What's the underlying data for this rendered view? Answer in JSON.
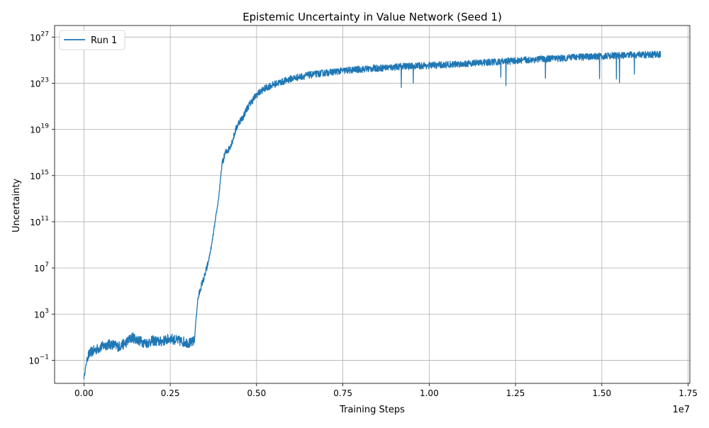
{
  "chart_data": {
    "type": "line",
    "title": "Epistemic Uncertainty in Value Network (Seed 1)",
    "xlabel": "Training Steps",
    "ylabel": "Uncertainty",
    "x_offset_label": "1e7",
    "x_scale": "linear",
    "y_scale": "log",
    "xlim": [
      -850000,
      17550000
    ],
    "ylim": [
      0.001,
      1e+28
    ],
    "x_ticks": [
      0,
      2500000,
      5000000,
      7500000,
      10000000,
      12500000,
      15000000,
      17500000
    ],
    "x_tick_labels": [
      "0.00",
      "0.25",
      "0.50",
      "0.75",
      "1.00",
      "1.25",
      "1.50",
      "1.75"
    ],
    "y_tick_exponents": [
      -1,
      3,
      7,
      11,
      15,
      19,
      23,
      27
    ],
    "grid": true,
    "legend_position": "top-left",
    "series": [
      {
        "name": "Run 1",
        "color": "#1f77b4",
        "x": [
          0,
          100000,
          200000,
          400000,
          600000,
          800000,
          1000000,
          1200000,
          1400000,
          1600000,
          1800000,
          2000000,
          2200000,
          2400000,
          2500000,
          2700000,
          2900000,
          3100000,
          3200000,
          3250000,
          3300000,
          3400000,
          3500000,
          3600000,
          3700000,
          3800000,
          3900000,
          4000000,
          4100000,
          4200000,
          4300000,
          4400000,
          4500000,
          4600000,
          4700000,
          4800000,
          4900000,
          5000000,
          5200000,
          5400000,
          5600000,
          5800000,
          6000000,
          6500000,
          7000000,
          7500000,
          8000000,
          8500000,
          9000000,
          9500000,
          10000000,
          10500000,
          11000000,
          11500000,
          12000000,
          12500000,
          13000000,
          13500000,
          14000000,
          14500000,
          15000000,
          15500000,
          16000000,
          16500000,
          16700000
        ],
        "y": [
          0.003,
          0.2,
          0.5,
          1,
          2,
          2.5,
          1.5,
          3,
          10,
          5,
          3,
          5,
          4,
          6,
          8,
          5,
          4,
          3,
          5,
          500,
          20000,
          300000,
          2000000,
          30000000,
          1000000000.0,
          100000000000.0,
          10000000000000.0,
          1e+16,
          1e+17,
          2e+17,
          1e+18,
          1e+19,
          5e+19,
          1e+20,
          5e+20,
          1.5e+21,
          4e+21,
          1e+22,
          3e+22,
          6e+22,
          1e+23,
          1.5e+23,
          2.5e+23,
          5e+23,
          8e+23,
          1.2e+24,
          1.6e+24,
          2e+24,
          2.5e+24,
          3e+24,
          3.5e+24,
          4e+24,
          5e+24,
          6e+24,
          7e+24,
          9e+24,
          1.1e+25,
          1.3e+25,
          1.6e+25,
          1.9e+25,
          2.2e+25,
          2.5e+25,
          2.8e+25,
          3e+25,
          3.2e+25
        ]
      }
    ]
  }
}
